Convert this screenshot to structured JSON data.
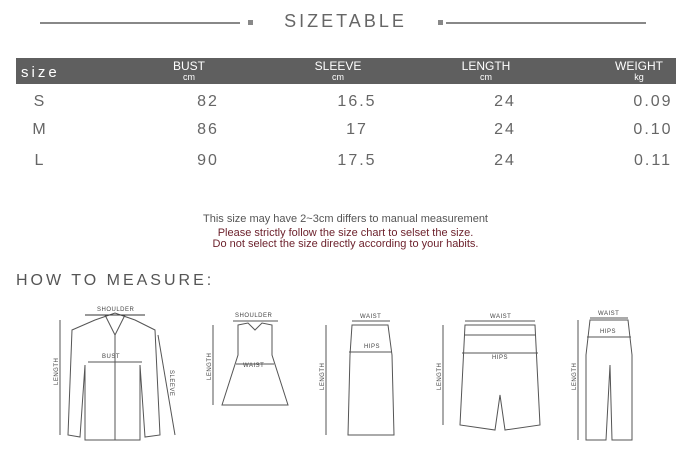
{
  "title": "SIZETABLE",
  "table": {
    "size_label": "size",
    "columns": [
      {
        "name": "BUST",
        "unit": "cm"
      },
      {
        "name": "SLEEVE",
        "unit": "cm"
      },
      {
        "name": "LENGTH",
        "unit": "cm"
      },
      {
        "name": "WEIGHT",
        "unit": "kg"
      }
    ],
    "rows": [
      [
        "S",
        "82",
        "16.5",
        "24",
        "0.09"
      ],
      [
        "M",
        "86",
        "17",
        "24",
        "0.10"
      ],
      [
        "L",
        "90",
        "17.5",
        "24",
        "0.11"
      ]
    ]
  },
  "notes": {
    "line1": "This size may have 2~3cm differs to manual measurement",
    "line2": "Please strictly follow the size chart to selset the size.",
    "line3": "Do not select the size directly according to your habits.",
    "warn_color": "#6b1f2a"
  },
  "how_to_measure": "HOW TO MEASURE:",
  "figures": {
    "jacket": {
      "shoulder": "SHOULDER",
      "bust": "BUST",
      "length": "LENGTH",
      "sleeve": "SLEEVE"
    },
    "dress": {
      "shoulder": "SHOULDER",
      "waist": "WAIST",
      "length": "LENGTH"
    },
    "skirt": {
      "waist": "WAIST",
      "hips": "HIPS",
      "length": "LENGTH"
    },
    "shorts": {
      "waist": "WAIST",
      "hips": "HIPS",
      "length": "LENGTH"
    },
    "pants": {
      "waist": "WAIST",
      "hips": "HIPS",
      "length": "LENGTH"
    }
  }
}
